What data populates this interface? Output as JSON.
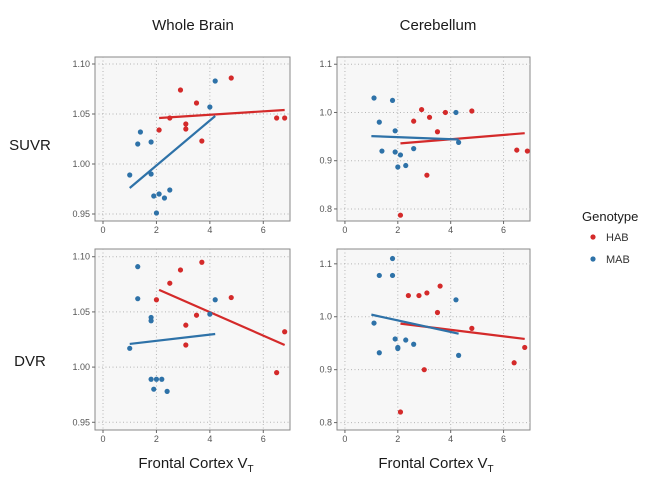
{
  "chart_data": {
    "type": "scatter",
    "facet_columns": [
      "Whole Brain",
      "Cerebellum"
    ],
    "facet_rows": [
      "SUVR",
      "DVR"
    ],
    "x_axis": {
      "label": "Frontal Cortex V",
      "label_subscript": "T",
      "range": [
        -0.3,
        7.0
      ],
      "ticks": [
        0,
        2,
        4,
        6
      ]
    },
    "legend": {
      "title": "Genotype",
      "position": "right",
      "entries": [
        {
          "name": "HAB",
          "color": "#d42a2a"
        },
        {
          "name": "MAB",
          "color": "#2e72a8"
        }
      ]
    },
    "grid": true,
    "panels": [
      {
        "column": "Whole Brain",
        "row": "SUVR",
        "ylim": [
          0.943,
          1.107
        ],
        "yticks": [
          "0.95",
          "1.00",
          "1.05",
          "1.10"
        ],
        "series": [
          {
            "name": "HAB",
            "points": [
              [
                2.1,
                1.034
              ],
              [
                2.5,
                1.046
              ],
              [
                2.9,
                1.074
              ],
              [
                3.1,
                1.04
              ],
              [
                3.1,
                1.035
              ],
              [
                3.5,
                1.061
              ],
              [
                3.7,
                1.023
              ],
              [
                4.8,
                1.086
              ],
              [
                6.5,
                1.046
              ],
              [
                6.8,
                1.046
              ]
            ],
            "fit": [
              [
                2.1,
                1.046
              ],
              [
                6.8,
                1.054
              ]
            ]
          },
          {
            "name": "MAB",
            "points": [
              [
                1.0,
                0.989
              ],
              [
                1.3,
                1.02
              ],
              [
                1.4,
                1.032
              ],
              [
                1.8,
                1.022
              ],
              [
                1.8,
                0.99
              ],
              [
                1.9,
                0.968
              ],
              [
                2.0,
                0.951
              ],
              [
                2.1,
                0.97
              ],
              [
                2.3,
                0.966
              ],
              [
                2.5,
                0.974
              ],
              [
                4.0,
                1.057
              ],
              [
                4.2,
                1.083
              ]
            ],
            "fit": [
              [
                1.0,
                0.976
              ],
              [
                4.2,
                1.048
              ]
            ]
          }
        ]
      },
      {
        "column": "Cerebellum",
        "row": "SUVR",
        "ylim": [
          0.775,
          1.115
        ],
        "yticks": [
          "0.8",
          "0.9",
          "1.0",
          "1.1"
        ],
        "series": [
          {
            "name": "HAB",
            "points": [
              [
                2.1,
                0.787
              ],
              [
                2.6,
                0.982
              ],
              [
                2.9,
                1.006
              ],
              [
                3.1,
                0.87
              ],
              [
                3.2,
                0.99
              ],
              [
                3.5,
                0.96
              ],
              [
                3.8,
                1.0
              ],
              [
                4.8,
                1.003
              ],
              [
                6.5,
                0.922
              ],
              [
                6.9,
                0.92
              ]
            ],
            "fit": [
              [
                2.1,
                0.936
              ],
              [
                6.8,
                0.957
              ]
            ]
          },
          {
            "name": "MAB",
            "points": [
              [
                1.1,
                1.03
              ],
              [
                1.3,
                0.98
              ],
              [
                1.4,
                0.92
              ],
              [
                1.8,
                1.025
              ],
              [
                1.9,
                0.962
              ],
              [
                1.9,
                0.918
              ],
              [
                2.0,
                0.887
              ],
              [
                2.1,
                0.912
              ],
              [
                2.3,
                0.89
              ],
              [
                2.6,
                0.925
              ],
              [
                4.2,
                1.0
              ],
              [
                4.3,
                0.938
              ]
            ],
            "fit": [
              [
                1.0,
                0.951
              ],
              [
                4.3,
                0.944
              ]
            ]
          }
        ]
      },
      {
        "column": "Whole Brain",
        "row": "DVR",
        "ylim": [
          0.943,
          1.107
        ],
        "yticks": [
          "0.95",
          "1.00",
          "1.05",
          "1.10"
        ],
        "series": [
          {
            "name": "HAB",
            "points": [
              [
                2.0,
                1.061
              ],
              [
                2.5,
                1.076
              ],
              [
                2.9,
                1.088
              ],
              [
                3.1,
                1.038
              ],
              [
                3.1,
                1.02
              ],
              [
                3.5,
                1.047
              ],
              [
                3.7,
                1.095
              ],
              [
                4.8,
                1.063
              ],
              [
                6.5,
                0.995
              ],
              [
                6.8,
                1.032
              ]
            ],
            "fit": [
              [
                2.1,
                1.07
              ],
              [
                6.8,
                1.02
              ]
            ]
          },
          {
            "name": "MAB",
            "points": [
              [
                1.0,
                1.017
              ],
              [
                1.3,
                1.091
              ],
              [
                1.3,
                1.062
              ],
              [
                1.8,
                1.045
              ],
              [
                1.8,
                1.042
              ],
              [
                1.8,
                0.989
              ],
              [
                1.9,
                0.98
              ],
              [
                2.0,
                0.989
              ],
              [
                2.2,
                0.989
              ],
              [
                2.4,
                0.978
              ],
              [
                4.0,
                1.048
              ],
              [
                4.2,
                1.061
              ]
            ],
            "fit": [
              [
                1.0,
                1.021
              ],
              [
                4.2,
                1.03
              ]
            ]
          }
        ]
      },
      {
        "column": "Cerebellum",
        "row": "DVR",
        "ylim": [
          0.786,
          1.128
        ],
        "yticks": [
          "0.8",
          "0.9",
          "1.0",
          "1.1"
        ],
        "series": [
          {
            "name": "HAB",
            "points": [
              [
                2.1,
                0.82
              ],
              [
                2.4,
                1.04
              ],
              [
                2.8,
                1.04
              ],
              [
                3.0,
                0.9
              ],
              [
                3.1,
                1.045
              ],
              [
                3.5,
                1.008
              ],
              [
                3.6,
                1.058
              ],
              [
                4.8,
                0.978
              ],
              [
                6.4,
                0.913
              ],
              [
                6.8,
                0.942
              ]
            ],
            "fit": [
              [
                2.1,
                0.987
              ],
              [
                6.8,
                0.958
              ]
            ]
          },
          {
            "name": "MAB",
            "points": [
              [
                1.1,
                0.988
              ],
              [
                1.3,
                0.932
              ],
              [
                1.3,
                1.078
              ],
              [
                1.8,
                1.078
              ],
              [
                1.8,
                1.11
              ],
              [
                1.9,
                0.958
              ],
              [
                2.0,
                0.94
              ],
              [
                2.0,
                0.942
              ],
              [
                2.3,
                0.956
              ],
              [
                2.6,
                0.948
              ],
              [
                4.2,
                1.032
              ],
              [
                4.3,
                0.927
              ]
            ],
            "fit": [
              [
                1.0,
                1.004
              ],
              [
                4.3,
                0.968
              ]
            ]
          }
        ]
      }
    ]
  }
}
